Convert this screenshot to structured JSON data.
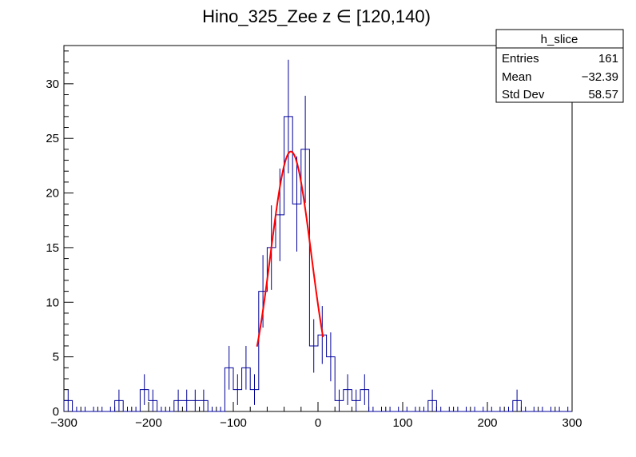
{
  "chart_data": {
    "type": "histogram",
    "title": "Hino_325_Zee z  ∈ [120,140)",
    "xlim": [
      -300,
      300
    ],
    "ylim": [
      0,
      33.5
    ],
    "x_ticks": [
      -300,
      -200,
      -100,
      0,
      100,
      200,
      300
    ],
    "y_ticks": [
      0,
      5,
      10,
      15,
      20,
      25,
      30
    ],
    "bin_width": 10,
    "bins": [
      {
        "x": -300,
        "y": 1,
        "err": 1
      },
      {
        "x": -290,
        "y": 0,
        "err": 0
      },
      {
        "x": -280,
        "y": 0,
        "err": 0
      },
      {
        "x": -270,
        "y": 0,
        "err": 0
      },
      {
        "x": -260,
        "y": 0,
        "err": 0
      },
      {
        "x": -250,
        "y": 0,
        "err": 0
      },
      {
        "x": -240,
        "y": 1,
        "err": 1
      },
      {
        "x": -230,
        "y": 0,
        "err": 0
      },
      {
        "x": -220,
        "y": 0,
        "err": 0
      },
      {
        "x": -210,
        "y": 2,
        "err": 1.41
      },
      {
        "x": -200,
        "y": 1,
        "err": 1
      },
      {
        "x": -190,
        "y": 0,
        "err": 0
      },
      {
        "x": -180,
        "y": 0,
        "err": 0
      },
      {
        "x": -170,
        "y": 1,
        "err": 1
      },
      {
        "x": -160,
        "y": 1,
        "err": 1
      },
      {
        "x": -150,
        "y": 1,
        "err": 1
      },
      {
        "x": -140,
        "y": 1,
        "err": 1
      },
      {
        "x": -130,
        "y": 0,
        "err": 0
      },
      {
        "x": -120,
        "y": 0,
        "err": 0
      },
      {
        "x": -110,
        "y": 4,
        "err": 2
      },
      {
        "x": -100,
        "y": 2,
        "err": 1.41
      },
      {
        "x": -90,
        "y": 4,
        "err": 2
      },
      {
        "x": -80,
        "y": 2,
        "err": 1.41
      },
      {
        "x": -70,
        "y": 11,
        "err": 3.32
      },
      {
        "x": -60,
        "y": 15,
        "err": 3.87
      },
      {
        "x": -50,
        "y": 18,
        "err": 4.24
      },
      {
        "x": -40,
        "y": 27,
        "err": 5.2
      },
      {
        "x": -30,
        "y": 19,
        "err": 4.36
      },
      {
        "x": -20,
        "y": 24,
        "err": 4.9
      },
      {
        "x": -10,
        "y": 6,
        "err": 2.45
      },
      {
        "x": 0,
        "y": 7,
        "err": 2.65
      },
      {
        "x": 10,
        "y": 5,
        "err": 2.24
      },
      {
        "x": 20,
        "y": 1,
        "err": 1
      },
      {
        "x": 30,
        "y": 2,
        "err": 1.41
      },
      {
        "x": 40,
        "y": 1,
        "err": 1
      },
      {
        "x": 50,
        "y": 2,
        "err": 1.41
      },
      {
        "x": 60,
        "y": 0,
        "err": 0
      },
      {
        "x": 70,
        "y": 0,
        "err": 0
      },
      {
        "x": 80,
        "y": 0,
        "err": 0
      },
      {
        "x": 90,
        "y": 0,
        "err": 0
      },
      {
        "x": 100,
        "y": 0,
        "err": 0
      },
      {
        "x": 110,
        "y": 0,
        "err": 0
      },
      {
        "x": 120,
        "y": 0,
        "err": 0
      },
      {
        "x": 130,
        "y": 1,
        "err": 1
      },
      {
        "x": 140,
        "y": 0,
        "err": 0
      },
      {
        "x": 150,
        "y": 0,
        "err": 0
      },
      {
        "x": 160,
        "y": 0,
        "err": 0
      },
      {
        "x": 170,
        "y": 0,
        "err": 0
      },
      {
        "x": 180,
        "y": 0,
        "err": 0
      },
      {
        "x": 190,
        "y": 0,
        "err": 0
      },
      {
        "x": 200,
        "y": 0,
        "err": 0
      },
      {
        "x": 210,
        "y": 0,
        "err": 0
      },
      {
        "x": 220,
        "y": 0,
        "err": 0
      },
      {
        "x": 230,
        "y": 1,
        "err": 1
      },
      {
        "x": 240,
        "y": 0,
        "err": 0
      },
      {
        "x": 250,
        "y": 0,
        "err": 0
      },
      {
        "x": 260,
        "y": 0,
        "err": 0
      },
      {
        "x": 270,
        "y": 0,
        "err": 0
      },
      {
        "x": 280,
        "y": 0,
        "err": 0
      },
      {
        "x": 290,
        "y": 0,
        "err": 0
      }
    ],
    "fit": {
      "type": "gaussian",
      "amplitude": 23.8,
      "mean": -32,
      "sigma": 24,
      "x_range": [
        -72,
        6
      ],
      "color": "#ff0000"
    },
    "histogram_color": "#000099",
    "stats_box": {
      "name": "h_slice",
      "rows": [
        {
          "label": "Entries",
          "value": "161"
        },
        {
          "label": "Mean",
          "value": "−32.39"
        },
        {
          "label": "Std Dev",
          "value": "58.57"
        }
      ]
    }
  }
}
